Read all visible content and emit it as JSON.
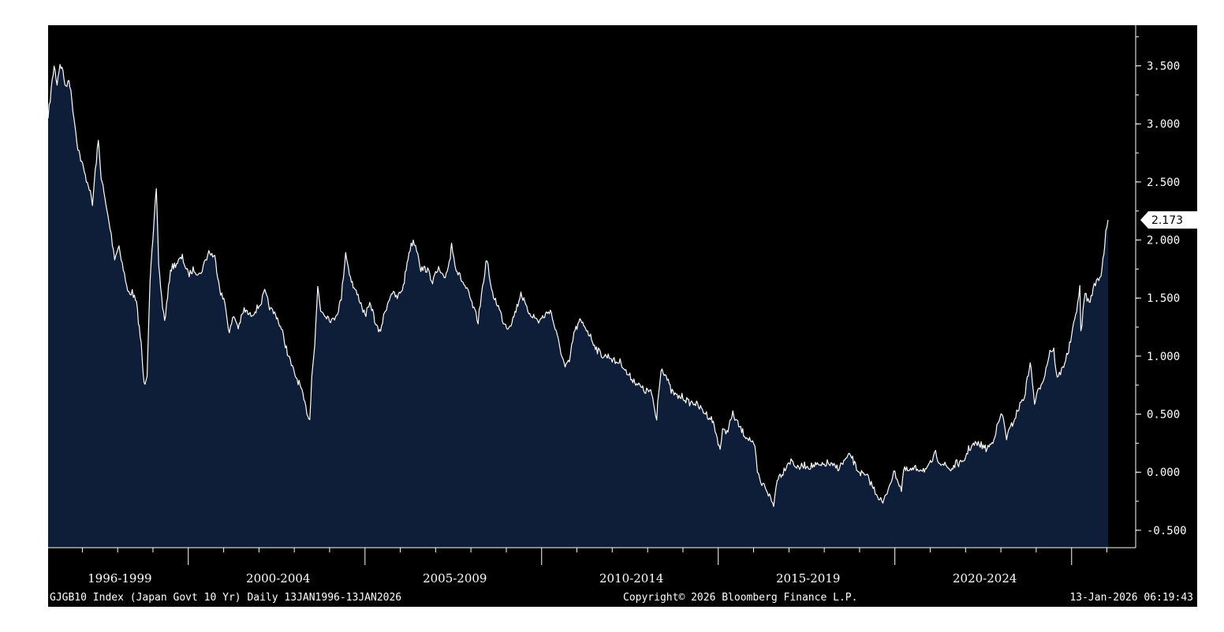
{
  "chart_data": {
    "type": "area",
    "colors": {
      "background": "#000000",
      "area_fill": "#0f1e38",
      "line": "#ffffff",
      "axis": "#ffffff",
      "last_value_box": "#ffffff"
    },
    "xlim": [
      "1996-01-13",
      "2026-01-13"
    ],
    "ylim": [
      -0.65,
      3.85
    ],
    "y_ticks": [
      3.5,
      3.0,
      2.5,
      2.0,
      1.5,
      1.0,
      0.5,
      0.0,
      -0.5
    ],
    "y_tick_labels": [
      "3.500",
      "3.000",
      "2.500",
      "2.000",
      "1.500",
      "1.000",
      "0.500",
      "0.000",
      "-0.500"
    ],
    "period_labels": [
      "1996-1999",
      "2000-2004",
      "2005-2009",
      "2010-2014",
      "2015-2019",
      "2020-2024"
    ],
    "last_value": 2.173,
    "last_value_label": "2.173",
    "series": [
      {
        "points": [
          [
            "1996-01-13",
            3.05
          ],
          [
            "1996-02-15",
            3.3
          ],
          [
            "1996-03-15",
            3.5
          ],
          [
            "1996-04-15",
            3.35
          ],
          [
            "1996-05-15",
            3.52
          ],
          [
            "1996-06-15",
            3.45
          ],
          [
            "1996-07-15",
            3.3
          ],
          [
            "1996-08-15",
            3.4
          ],
          [
            "1996-09-15",
            3.2
          ],
          [
            "1996-10-15",
            3.0
          ],
          [
            "1996-11-15",
            2.8
          ],
          [
            "1996-12-15",
            2.7
          ],
          [
            "1997-02-01",
            2.55
          ],
          [
            "1997-03-15",
            2.45
          ],
          [
            "1997-04-15",
            2.3
          ],
          [
            "1997-05-15",
            2.6
          ],
          [
            "1997-06-15",
            2.85
          ],
          [
            "1997-07-15",
            2.55
          ],
          [
            "1997-09-01",
            2.3
          ],
          [
            "1997-10-15",
            2.1
          ],
          [
            "1997-12-01",
            1.85
          ],
          [
            "1998-01-15",
            1.95
          ],
          [
            "1998-03-01",
            1.75
          ],
          [
            "1998-04-15",
            1.55
          ],
          [
            "1998-06-01",
            1.55
          ],
          [
            "1998-07-15",
            1.45
          ],
          [
            "1998-09-01",
            1.1
          ],
          [
            "1998-10-01",
            0.75
          ],
          [
            "1998-11-01",
            0.85
          ],
          [
            "1998-12-01",
            1.65
          ],
          [
            "1999-01-01",
            2.0
          ],
          [
            "1999-02-05",
            2.45
          ],
          [
            "1999-03-01",
            1.8
          ],
          [
            "1999-04-01",
            1.5
          ],
          [
            "1999-05-01",
            1.3
          ],
          [
            "1999-06-01",
            1.5
          ],
          [
            "1999-07-01",
            1.75
          ],
          [
            "1999-09-01",
            1.8
          ],
          [
            "1999-11-01",
            1.85
          ],
          [
            "2000-01-01",
            1.7
          ],
          [
            "2000-03-01",
            1.75
          ],
          [
            "2000-05-01",
            1.7
          ],
          [
            "2000-06-15",
            1.8
          ],
          [
            "2000-08-01",
            1.9
          ],
          [
            "2000-10-01",
            1.85
          ],
          [
            "2000-12-01",
            1.55
          ],
          [
            "2001-01-15",
            1.45
          ],
          [
            "2001-03-01",
            1.2
          ],
          [
            "2001-04-15",
            1.35
          ],
          [
            "2001-06-01",
            1.25
          ],
          [
            "2001-08-01",
            1.4
          ],
          [
            "2001-10-01",
            1.35
          ],
          [
            "2001-12-01",
            1.4
          ],
          [
            "2002-01-15",
            1.45
          ],
          [
            "2002-03-01",
            1.55
          ],
          [
            "2002-05-01",
            1.4
          ],
          [
            "2002-07-01",
            1.35
          ],
          [
            "2002-09-01",
            1.2
          ],
          [
            "2002-11-01",
            1.0
          ],
          [
            "2003-01-01",
            0.85
          ],
          [
            "2003-03-01",
            0.75
          ],
          [
            "2003-05-01",
            0.55
          ],
          [
            "2003-06-10",
            0.45
          ],
          [
            "2003-07-01",
            0.85
          ],
          [
            "2003-08-01",
            1.1
          ],
          [
            "2003-09-01",
            1.6
          ],
          [
            "2003-10-01",
            1.4
          ],
          [
            "2003-12-01",
            1.35
          ],
          [
            "2004-02-01",
            1.3
          ],
          [
            "2004-04-01",
            1.4
          ],
          [
            "2004-05-01",
            1.5
          ],
          [
            "2004-06-15",
            1.9
          ],
          [
            "2004-07-15",
            1.75
          ],
          [
            "2004-09-01",
            1.6
          ],
          [
            "2004-11-01",
            1.5
          ],
          [
            "2005-01-01",
            1.35
          ],
          [
            "2005-03-01",
            1.45
          ],
          [
            "2005-05-01",
            1.25
          ],
          [
            "2005-06-01",
            1.2
          ],
          [
            "2005-08-01",
            1.4
          ],
          [
            "2005-10-01",
            1.55
          ],
          [
            "2005-12-01",
            1.5
          ],
          [
            "2006-02-01",
            1.6
          ],
          [
            "2006-04-01",
            1.9
          ],
          [
            "2006-05-15",
            2.0
          ],
          [
            "2006-07-01",
            1.9
          ],
          [
            "2006-08-01",
            1.75
          ],
          [
            "2006-10-01",
            1.75
          ],
          [
            "2006-12-01",
            1.65
          ],
          [
            "2007-02-01",
            1.75
          ],
          [
            "2007-04-01",
            1.65
          ],
          [
            "2007-06-01",
            1.85
          ],
          [
            "2007-06-15",
            1.98
          ],
          [
            "2007-08-01",
            1.75
          ],
          [
            "2007-10-01",
            1.65
          ],
          [
            "2007-12-01",
            1.55
          ],
          [
            "2008-02-01",
            1.4
          ],
          [
            "2008-03-15",
            1.3
          ],
          [
            "2008-05-01",
            1.6
          ],
          [
            "2008-06-15",
            1.85
          ],
          [
            "2008-08-01",
            1.55
          ],
          [
            "2008-10-01",
            1.45
          ],
          [
            "2008-12-01",
            1.3
          ],
          [
            "2009-01-15",
            1.25
          ],
          [
            "2009-03-01",
            1.3
          ],
          [
            "2009-05-01",
            1.45
          ],
          [
            "2009-06-01",
            1.55
          ],
          [
            "2009-08-01",
            1.4
          ],
          [
            "2009-10-01",
            1.35
          ],
          [
            "2009-12-01",
            1.3
          ],
          [
            "2010-02-01",
            1.35
          ],
          [
            "2010-04-01",
            1.4
          ],
          [
            "2010-06-01",
            1.2
          ],
          [
            "2010-08-01",
            1.0
          ],
          [
            "2010-09-01",
            0.9
          ],
          [
            "2010-10-15",
            0.95
          ],
          [
            "2010-12-01",
            1.2
          ],
          [
            "2011-02-01",
            1.3
          ],
          [
            "2011-04-01",
            1.25
          ],
          [
            "2011-06-01",
            1.15
          ],
          [
            "2011-08-01",
            1.05
          ],
          [
            "2011-10-01",
            1.0
          ],
          [
            "2011-12-01",
            1.0
          ],
          [
            "2012-02-01",
            0.95
          ],
          [
            "2012-04-01",
            0.95
          ],
          [
            "2012-06-01",
            0.85
          ],
          [
            "2012-08-01",
            0.8
          ],
          [
            "2012-10-01",
            0.75
          ],
          [
            "2012-12-01",
            0.7
          ],
          [
            "2013-02-01",
            0.7
          ],
          [
            "2013-04-05",
            0.45
          ],
          [
            "2013-04-15",
            0.6
          ],
          [
            "2013-05-20",
            0.9
          ],
          [
            "2013-07-01",
            0.85
          ],
          [
            "2013-09-01",
            0.7
          ],
          [
            "2013-11-01",
            0.65
          ],
          [
            "2014-01-01",
            0.65
          ],
          [
            "2014-03-01",
            0.6
          ],
          [
            "2014-05-01",
            0.6
          ],
          [
            "2014-07-01",
            0.55
          ],
          [
            "2014-09-01",
            0.5
          ],
          [
            "2014-11-01",
            0.45
          ],
          [
            "2015-01-20",
            0.2
          ],
          [
            "2015-02-15",
            0.35
          ],
          [
            "2015-04-01",
            0.35
          ],
          [
            "2015-06-01",
            0.5
          ],
          [
            "2015-08-01",
            0.4
          ],
          [
            "2015-10-01",
            0.32
          ],
          [
            "2015-12-01",
            0.28
          ],
          [
            "2016-01-15",
            0.2
          ],
          [
            "2016-02-10",
            0.0
          ],
          [
            "2016-03-15",
            -0.1
          ],
          [
            "2016-05-01",
            -0.12
          ],
          [
            "2016-07-27",
            -0.29
          ],
          [
            "2016-09-01",
            -0.05
          ],
          [
            "2016-11-01",
            0.0
          ],
          [
            "2016-12-15",
            0.08
          ],
          [
            "2017-02-01",
            0.1
          ],
          [
            "2017-04-01",
            0.03
          ],
          [
            "2017-06-01",
            0.06
          ],
          [
            "2017-08-01",
            0.05
          ],
          [
            "2017-10-01",
            0.06
          ],
          [
            "2017-12-01",
            0.05
          ],
          [
            "2018-02-01",
            0.08
          ],
          [
            "2018-04-01",
            0.05
          ],
          [
            "2018-06-01",
            0.04
          ],
          [
            "2018-08-01",
            0.1
          ],
          [
            "2018-10-01",
            0.15
          ],
          [
            "2018-12-01",
            0.03
          ],
          [
            "2019-02-01",
            -0.02
          ],
          [
            "2019-04-01",
            -0.05
          ],
          [
            "2019-06-01",
            -0.15
          ],
          [
            "2019-08-30",
            -0.27
          ],
          [
            "2019-10-01",
            -0.2
          ],
          [
            "2019-11-15",
            -0.08
          ],
          [
            "2020-01-01",
            0.0
          ],
          [
            "2020-03-09",
            -0.15
          ],
          [
            "2020-04-01",
            0.02
          ],
          [
            "2020-06-01",
            0.01
          ],
          [
            "2020-08-01",
            0.03
          ],
          [
            "2020-10-01",
            0.03
          ],
          [
            "2020-12-01",
            0.02
          ],
          [
            "2021-02-25",
            0.16
          ],
          [
            "2021-04-01",
            0.1
          ],
          [
            "2021-06-01",
            0.06
          ],
          [
            "2021-08-01",
            0.02
          ],
          [
            "2021-10-01",
            0.08
          ],
          [
            "2021-12-01",
            0.07
          ],
          [
            "2022-02-01",
            0.2
          ],
          [
            "2022-04-01",
            0.24
          ],
          [
            "2022-06-01",
            0.24
          ],
          [
            "2022-08-01",
            0.2
          ],
          [
            "2022-10-01",
            0.25
          ],
          [
            "2022-12-20",
            0.46
          ],
          [
            "2023-01-15",
            0.5
          ],
          [
            "2023-03-01",
            0.3
          ],
          [
            "2023-05-01",
            0.42
          ],
          [
            "2023-07-28",
            0.6
          ],
          [
            "2023-09-01",
            0.65
          ],
          [
            "2023-10-31",
            0.95
          ],
          [
            "2023-12-15",
            0.6
          ],
          [
            "2024-02-01",
            0.72
          ],
          [
            "2024-04-01",
            0.85
          ],
          [
            "2024-05-22",
            1.05
          ],
          [
            "2024-07-01",
            1.05
          ],
          [
            "2024-08-05",
            0.8
          ],
          [
            "2024-10-01",
            0.9
          ],
          [
            "2024-12-01",
            1.05
          ],
          [
            "2025-02-01",
            1.3
          ],
          [
            "2025-03-27",
            1.58
          ],
          [
            "2025-04-07",
            1.2
          ],
          [
            "2025-05-21",
            1.55
          ],
          [
            "2025-07-01",
            1.45
          ],
          [
            "2025-08-01",
            1.55
          ],
          [
            "2025-09-15",
            1.65
          ],
          [
            "2025-11-01",
            1.7
          ],
          [
            "2025-12-01",
            1.9
          ],
          [
            "2025-12-20",
            2.05
          ],
          [
            "2026-01-13",
            2.173
          ]
        ]
      }
    ]
  },
  "footer": {
    "left": "GJGB10 Index (Japan Govt 10 Yr) Daily 13JAN1996-13JAN2026",
    "center": "Copyright© 2026 Bloomberg Finance L.P.",
    "right": "13-Jan-2026 06:19:43"
  }
}
